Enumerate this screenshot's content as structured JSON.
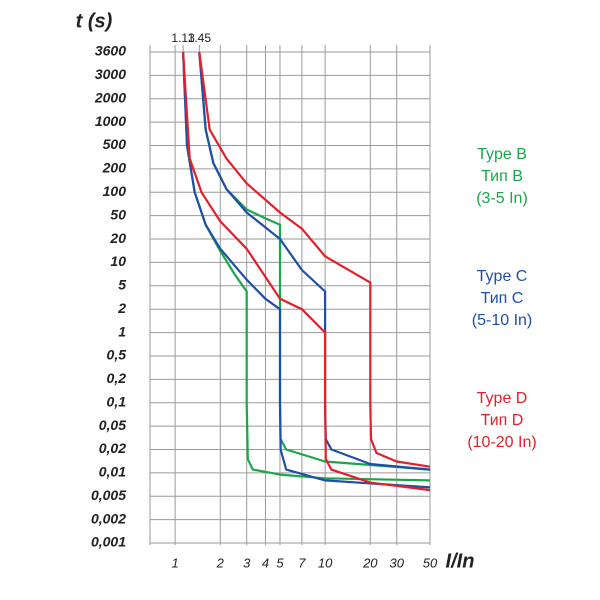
{
  "chart_data": {
    "type": "line",
    "y_label": "t (s)",
    "x_label": "I/In",
    "xscale": "log",
    "xlim": [
      0.68,
      50
    ],
    "xticks": [
      1,
      2,
      3,
      4,
      5,
      7,
      10,
      20,
      30,
      50
    ],
    "x2ticks": [
      1.13,
      1.45
    ],
    "y_tick_spacing": "even",
    "ylim": [
      0.001,
      3600
    ],
    "yticks": [
      3600,
      3000,
      2000,
      1000,
      500,
      200,
      100,
      50,
      20,
      10,
      5,
      2,
      1,
      {
        "value": 0.5,
        "label": "0,5"
      },
      {
        "value": 0.2,
        "label": "0,2"
      },
      {
        "value": 0.1,
        "label": "0,1"
      },
      {
        "value": 0.05,
        "label": "0,05"
      },
      {
        "value": 0.02,
        "label": "0,02"
      },
      {
        "value": 0.01,
        "label": "0,01"
      },
      {
        "value": 0.005,
        "label": "0,005"
      },
      {
        "value": 0.002,
        "label": "0,002"
      },
      {
        "value": 0.001,
        "label": "0,001"
      }
    ],
    "grid": true,
    "series": [
      {
        "color": "#1aa64a",
        "x": [
          1.13,
          1.2,
          1.35,
          1.6,
          2,
          2.5,
          3,
          3,
          3.05,
          3.3,
          5,
          10,
          50
        ],
        "values": [
          3600,
          500,
          100,
          35,
          14,
          7,
          4,
          0.1,
          0.015,
          0.011,
          0.0095,
          0.0085,
          0.008
        ]
      },
      {
        "color": "#1aa64a",
        "x": [
          1.45,
          1.6,
          1.8,
          2.2,
          3,
          4,
          5,
          5,
          5.05,
          5.5,
          10,
          50
        ],
        "values": [
          3600,
          800,
          250,
          110,
          60,
          45,
          35,
          0.1,
          0.03,
          0.02,
          0.014,
          0.011
        ]
      },
      {
        "color": "#1f4fa8",
        "x": [
          1.13,
          1.2,
          1.35,
          1.6,
          2,
          3,
          4,
          5,
          5,
          5.05,
          5.5,
          10,
          50
        ],
        "values": [
          3600,
          500,
          100,
          35,
          15,
          6,
          3,
          2,
          0.1,
          0.02,
          0.011,
          0.008,
          0.0065
        ]
      },
      {
        "color": "#1f4fa8",
        "x": [
          1.45,
          1.6,
          1.8,
          2.2,
          3,
          5,
          7,
          10,
          10,
          10.1,
          11,
          20,
          50
        ],
        "values": [
          3600,
          800,
          250,
          110,
          55,
          20,
          8,
          4,
          0.1,
          0.03,
          0.02,
          0.013,
          0.011
        ]
      },
      {
        "color": "#e3202a",
        "x": [
          1.13,
          1.25,
          1.5,
          2,
          3,
          5,
          7,
          10,
          10,
          10.1,
          11,
          20,
          50
        ],
        "values": [
          3600,
          300,
          100,
          40,
          15,
          3,
          2,
          1,
          0.1,
          0.015,
          0.011,
          0.0075,
          0.006
        ]
      },
      {
        "color": "#e3202a",
        "x": [
          1.45,
          1.7,
          2.2,
          3,
          5,
          7,
          10,
          20,
          20,
          20.2,
          22,
          30,
          50
        ],
        "values": [
          3600,
          800,
          300,
          130,
          55,
          30,
          12,
          5.5,
          0.1,
          0.03,
          0.018,
          0.014,
          0.012
        ]
      }
    ],
    "legend": [
      {
        "color": "#1aa64a",
        "lines": [
          "Type B",
          "Тип B",
          "(3-5 In)"
        ]
      },
      {
        "color": "#1f4fa8",
        "lines": [
          "Type C",
          "Тип C",
          "(5-10 In)"
        ]
      },
      {
        "color": "#e3202a",
        "lines": [
          "Type D",
          "Тип D",
          "(10-20 In)"
        ]
      }
    ]
  }
}
